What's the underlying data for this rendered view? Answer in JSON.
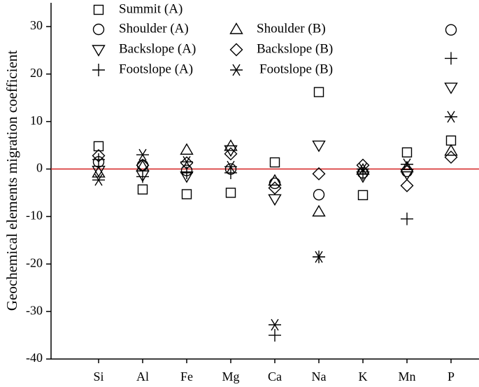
{
  "chart_data": {
    "type": "scatter",
    "ylabel": "Geochemical elements migration coefficient",
    "xlabel": "",
    "categories": [
      "Si",
      "Al",
      "Fe",
      "Mg",
      "Ca",
      "Na",
      "K",
      "Mn",
      "P"
    ],
    "ylim": [
      -40,
      35
    ],
    "yticks": [
      30,
      20,
      10,
      0,
      -10,
      -20,
      -30,
      -40
    ],
    "ytick_labels": [
      "30",
      "20",
      "10",
      "0",
      "-10",
      "-20",
      "-30",
      "-40"
    ],
    "reference_line": {
      "y": 0,
      "color": "#d42020"
    },
    "legend_position": "top",
    "series": [
      {
        "name": "Summit (A)",
        "marker": "square",
        "values": [
          4.8,
          -4.3,
          -5.3,
          -5.0,
          1.4,
          16.2,
          -5.5,
          3.5,
          6.0
        ]
      },
      {
        "name": "Shoulder (A)",
        "marker": "circle",
        "values": [
          1.5,
          0.8,
          -0.3,
          0.0,
          -3.0,
          -5.4,
          -0.8,
          -0.5,
          29.3
        ]
      },
      {
        "name": "Shoulder (B)",
        "marker": "triangle-up",
        "values": [
          -0.8,
          0.5,
          4.0,
          4.8,
          -2.5,
          -9.0,
          -0.2,
          0.3,
          3.8
        ]
      },
      {
        "name": "Backslope (A)",
        "marker": "triangle-down",
        "values": [
          -0.3,
          -1.3,
          -1.5,
          4.0,
          -6.3,
          5.0,
          -1.5,
          -1.0,
          17.2
        ]
      },
      {
        "name": "Backslope (B)",
        "marker": "diamond",
        "values": [
          2.8,
          0.8,
          1.3,
          3.2,
          -4.0,
          -1.0,
          0.8,
          -3.5,
          2.5
        ]
      },
      {
        "name": "Footslope (A)",
        "marker": "plus",
        "values": [
          2.0,
          -1.6,
          -0.8,
          -0.8,
          -35.0,
          -18.5,
          -1.0,
          -10.5,
          23.3
        ]
      },
      {
        "name": "Footslope (B)",
        "marker": "asterisk",
        "values": [
          -2.3,
          3.0,
          1.5,
          0.5,
          -32.8,
          -18.5,
          0.0,
          1.0,
          11.0
        ]
      }
    ]
  }
}
